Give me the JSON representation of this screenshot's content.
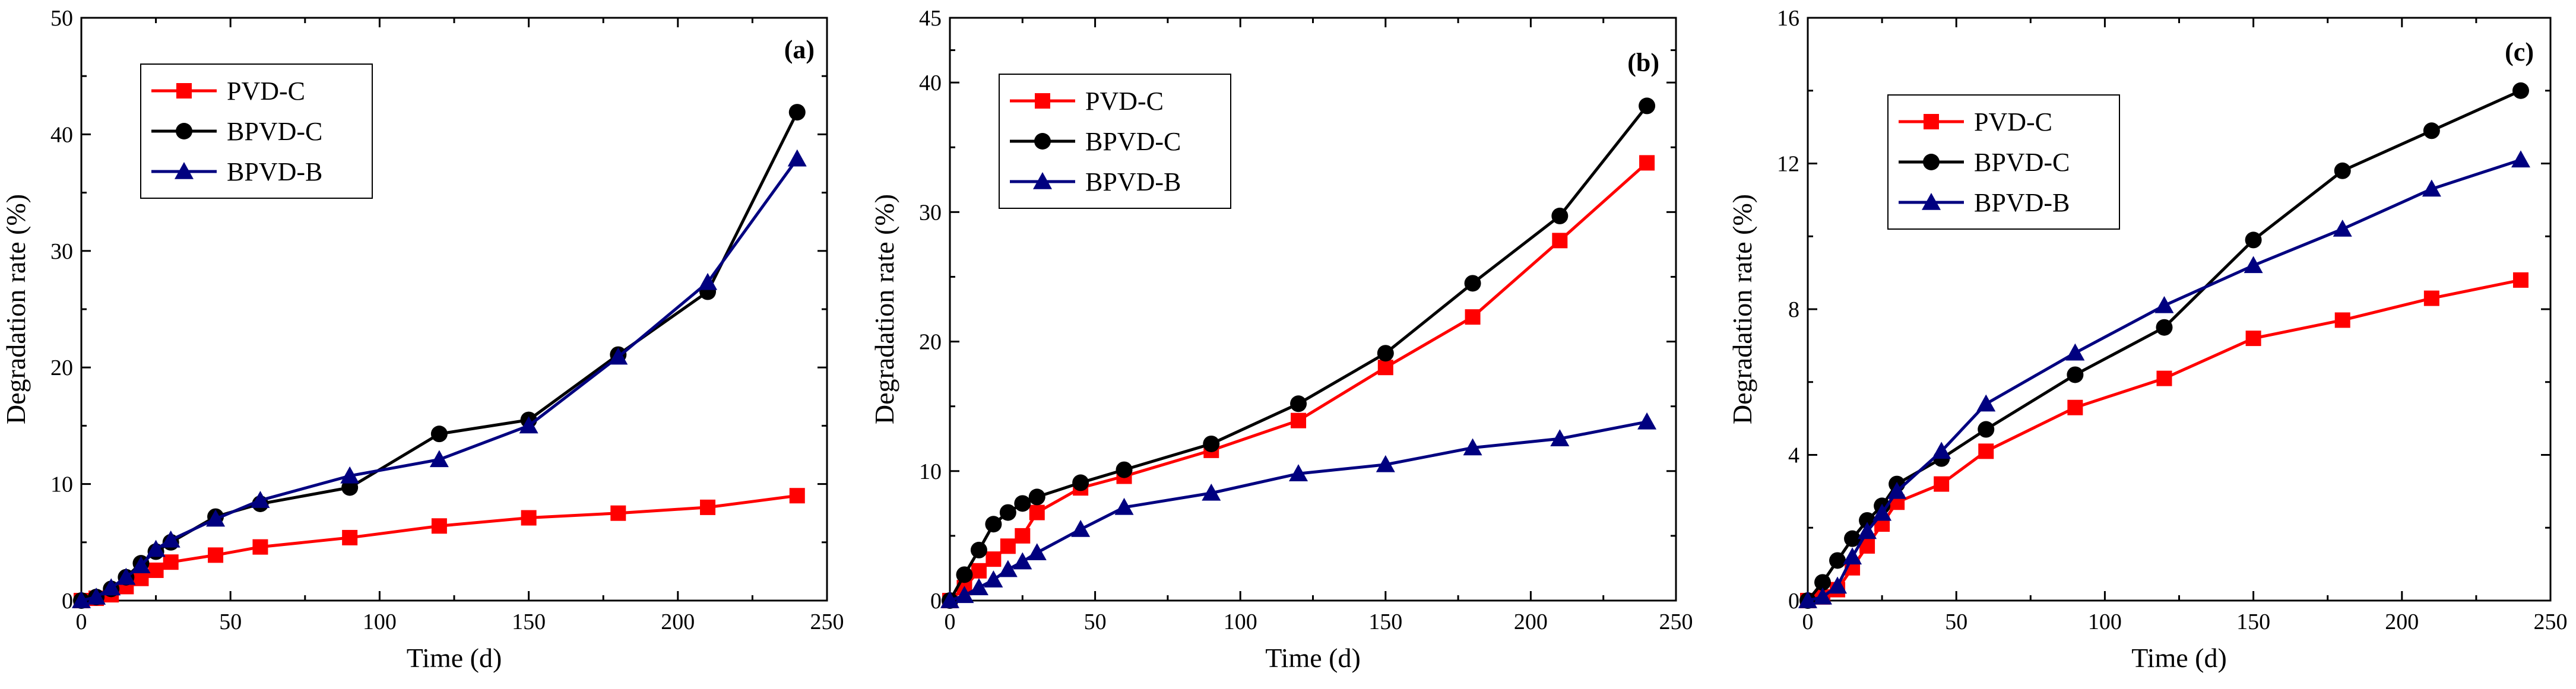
{
  "chart_data": [
    {
      "type": "line",
      "panel_label": "(a)",
      "xlabel": "Time (d)",
      "ylabel": "Degradation rate (%)",
      "xlim": [
        0,
        250
      ],
      "ylim": [
        0,
        50
      ],
      "xticks": [
        0,
        50,
        100,
        150,
        200,
        250
      ],
      "yticks": [
        0,
        10,
        20,
        30,
        40,
        50
      ],
      "grid": false,
      "legend": "top-left",
      "series": [
        {
          "name": "PVD-C",
          "color": "#ff0000",
          "marker": "square",
          "x": [
            0,
            5,
            10,
            15,
            20,
            25,
            30,
            45,
            60,
            90,
            120,
            150,
            180,
            210,
            240
          ],
          "y": [
            0,
            0.2,
            0.5,
            1.2,
            1.9,
            2.6,
            3.3,
            3.9,
            4.6,
            5.4,
            6.4,
            7.1,
            7.5,
            8.0,
            9.0
          ]
        },
        {
          "name": "BPVD-C",
          "color": "#000000",
          "marker": "circle",
          "x": [
            0,
            5,
            10,
            15,
            20,
            25,
            30,
            45,
            60,
            90,
            120,
            150,
            180,
            210,
            240
          ],
          "y": [
            0,
            0.3,
            1.0,
            2.0,
            3.2,
            4.2,
            5.0,
            7.2,
            8.3,
            9.7,
            14.3,
            15.5,
            21.1,
            26.5,
            41.9
          ]
        },
        {
          "name": "BPVD-B",
          "color": "#000080",
          "marker": "triangle",
          "x": [
            0,
            5,
            10,
            15,
            20,
            25,
            30,
            45,
            60,
            90,
            120,
            150,
            180,
            210,
            240
          ],
          "y": [
            0,
            0.3,
            1.1,
            2.0,
            3.0,
            4.4,
            5.2,
            7.0,
            8.6,
            10.7,
            12.1,
            15.0,
            20.9,
            27.3,
            37.9
          ]
        }
      ]
    },
    {
      "type": "line",
      "panel_label": "(b)",
      "xlabel": "Time (d)",
      "ylabel": "Degradation rate (%)",
      "xlim": [
        0,
        250
      ],
      "ylim": [
        0,
        45
      ],
      "xticks": [
        0,
        50,
        100,
        150,
        200,
        250
      ],
      "yticks": [
        0,
        10,
        20,
        30,
        40
      ],
      "ytick_max_label": "45",
      "grid": false,
      "legend": "top-left",
      "series": [
        {
          "name": "PVD-C",
          "color": "#ff0000",
          "marker": "square",
          "x": [
            0,
            5,
            10,
            15,
            20,
            25,
            30,
            45,
            60,
            90,
            120,
            150,
            180,
            210,
            240
          ],
          "y": [
            0,
            1.0,
            2.3,
            3.2,
            4.2,
            5.0,
            6.8,
            8.7,
            9.6,
            11.6,
            13.9,
            18.0,
            21.9,
            27.8,
            33.8
          ]
        },
        {
          "name": "BPVD-C",
          "color": "#000000",
          "marker": "circle",
          "x": [
            0,
            5,
            10,
            15,
            20,
            25,
            30,
            45,
            60,
            90,
            120,
            150,
            180,
            210,
            240
          ],
          "y": [
            0,
            2.0,
            3.9,
            5.9,
            6.8,
            7.5,
            8.0,
            9.1,
            10.1,
            12.1,
            15.2,
            19.1,
            24.5,
            29.7,
            38.2
          ]
        },
        {
          "name": "BPVD-B",
          "color": "#000080",
          "marker": "triangle",
          "x": [
            0,
            5,
            10,
            15,
            20,
            25,
            30,
            45,
            60,
            90,
            120,
            150,
            180,
            210,
            240
          ],
          "y": [
            0,
            0.4,
            1.0,
            1.6,
            2.4,
            3.0,
            3.7,
            5.5,
            7.2,
            8.3,
            9.8,
            10.5,
            11.8,
            12.5,
            13.8
          ]
        }
      ]
    },
    {
      "type": "line",
      "panel_label": "(c)",
      "xlabel": "Time (d)",
      "ylabel": "Degradation rate (%)",
      "xlim": [
        0,
        250
      ],
      "ylim": [
        0,
        16
      ],
      "xticks": [
        0,
        50,
        100,
        150,
        200,
        250
      ],
      "yticks": [
        0,
        4,
        8,
        12,
        16
      ],
      "grid": false,
      "legend": "top-left",
      "series": [
        {
          "name": "PVD-C",
          "color": "#ff0000",
          "marker": "square",
          "x": [
            0,
            5,
            10,
            15,
            20,
            25,
            30,
            45,
            60,
            90,
            120,
            150,
            180,
            210,
            240
          ],
          "y": [
            0,
            0.1,
            0.3,
            0.9,
            1.5,
            2.1,
            2.7,
            3.2,
            4.1,
            5.3,
            6.1,
            7.2,
            7.7,
            8.3,
            8.8
          ]
        },
        {
          "name": "BPVD-C",
          "color": "#000000",
          "marker": "circle",
          "x": [
            0,
            5,
            10,
            15,
            20,
            25,
            30,
            45,
            60,
            90,
            120,
            150,
            180,
            210,
            240
          ],
          "y": [
            0,
            0.5,
            1.1,
            1.7,
            2.2,
            2.6,
            3.2,
            3.9,
            4.7,
            6.2,
            7.5,
            9.9,
            11.8,
            12.9,
            14.0
          ]
        },
        {
          "name": "BPVD-B",
          "color": "#000080",
          "marker": "triangle",
          "x": [
            0,
            5,
            10,
            15,
            20,
            25,
            30,
            45,
            60,
            90,
            120,
            150,
            180,
            210,
            240
          ],
          "y": [
            0,
            0.1,
            0.4,
            1.2,
            1.9,
            2.4,
            3.0,
            4.1,
            5.4,
            6.8,
            8.1,
            9.2,
            10.2,
            11.3,
            12.1
          ]
        }
      ]
    }
  ]
}
